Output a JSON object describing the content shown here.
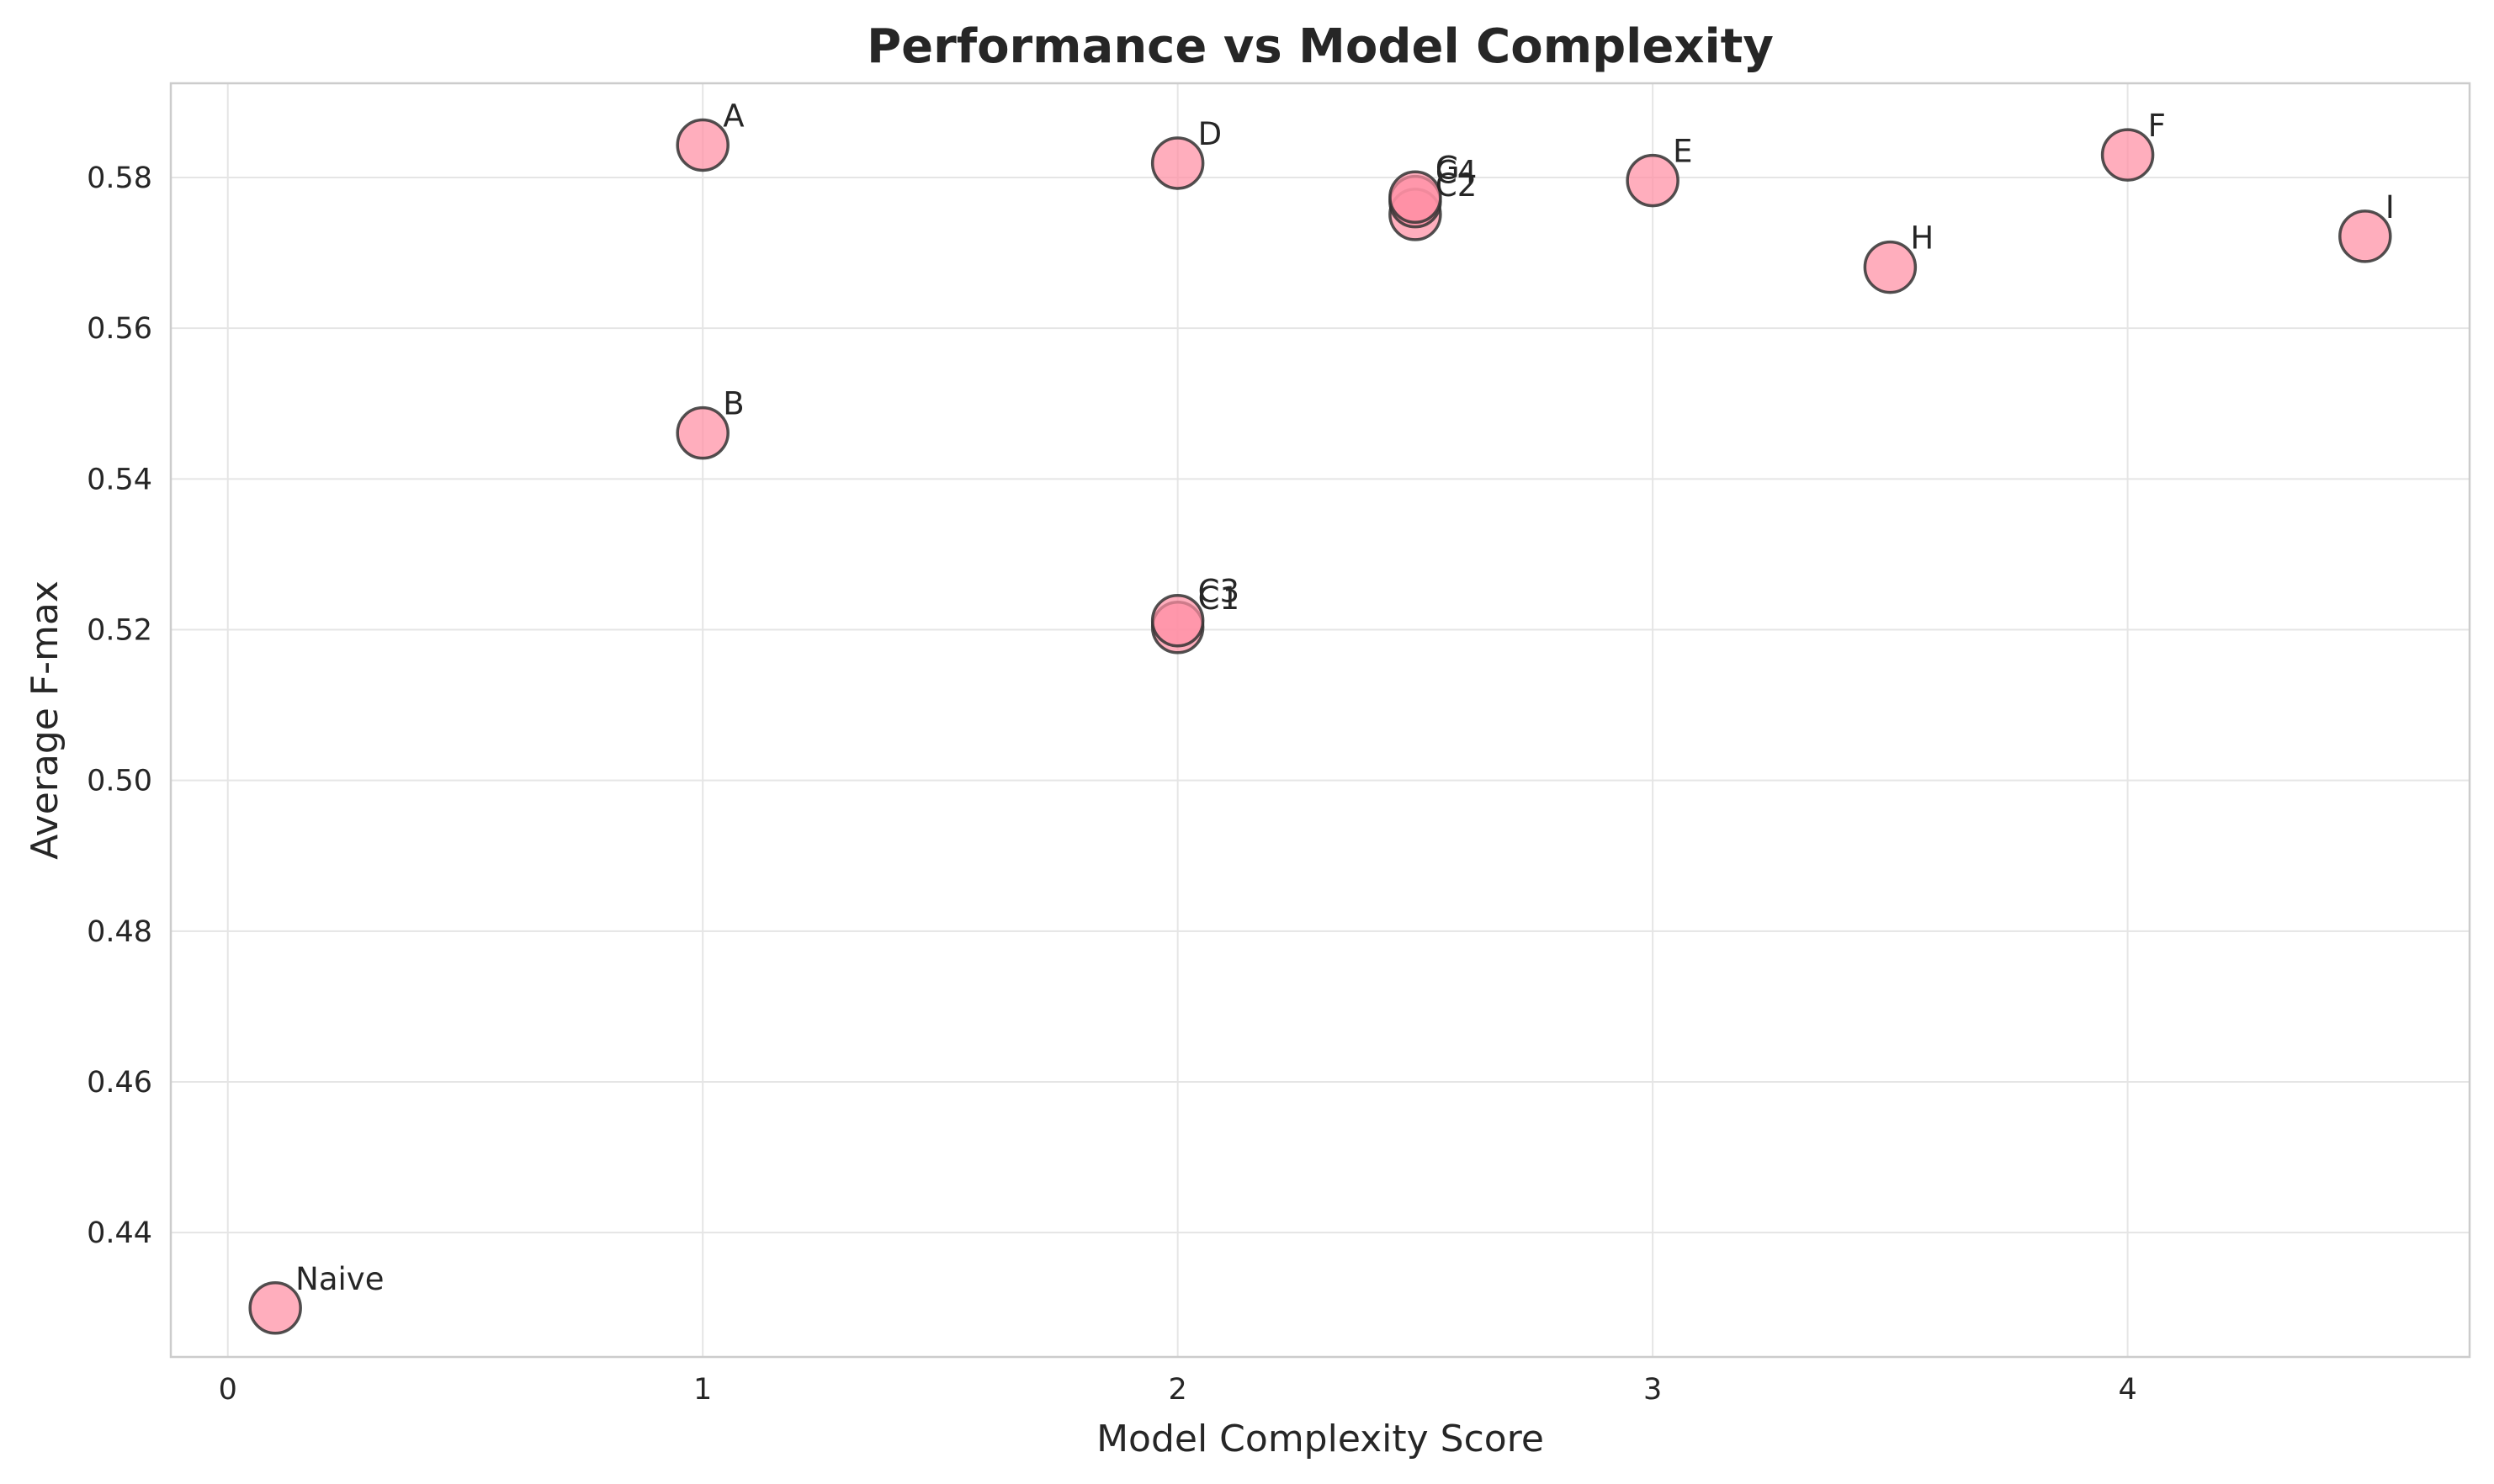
{
  "chart_data": {
    "type": "scatter",
    "title": "Performance vs Model Complexity",
    "xlabel": "Model Complexity Score",
    "ylabel": "Average F-max",
    "xlim": [
      -0.12,
      4.72
    ],
    "ylim": [
      0.4235,
      0.5925
    ],
    "xticks": [
      0,
      1,
      2,
      3,
      4
    ],
    "xtick_labels": [
      "0",
      "1",
      "2",
      "3",
      "4"
    ],
    "yticks": [
      0.44,
      0.46,
      0.48,
      0.5,
      0.52,
      0.54,
      0.56,
      0.58
    ],
    "ytick_labels": [
      "0.44",
      "0.46",
      "0.48",
      "0.50",
      "0.52",
      "0.54",
      "0.56",
      "0.58"
    ],
    "grid": true,
    "marker_color": "#ff8fa3",
    "marker_edge_color": "#333333",
    "points": [
      {
        "label": "Naive",
        "x": 0.1,
        "y": 0.43
      },
      {
        "label": "A",
        "x": 1.0,
        "y": 0.5843
      },
      {
        "label": "B",
        "x": 1.0,
        "y": 0.5461
      },
      {
        "label": "C1",
        "x": 2.0,
        "y": 0.5203
      },
      {
        "label": "C3",
        "x": 2.0,
        "y": 0.5212
      },
      {
        "label": "D",
        "x": 2.0,
        "y": 0.5819
      },
      {
        "label": "C2",
        "x": 2.5,
        "y": 0.5751
      },
      {
        "label": "C4",
        "x": 2.5,
        "y": 0.5768
      },
      {
        "label": "G",
        "x": 2.5,
        "y": 0.5774
      },
      {
        "label": "E",
        "x": 3.0,
        "y": 0.5796
      },
      {
        "label": "H",
        "x": 3.5,
        "y": 0.5681
      },
      {
        "label": "F",
        "x": 4.0,
        "y": 0.583
      },
      {
        "label": "I",
        "x": 4.5,
        "y": 0.5722
      }
    ]
  }
}
